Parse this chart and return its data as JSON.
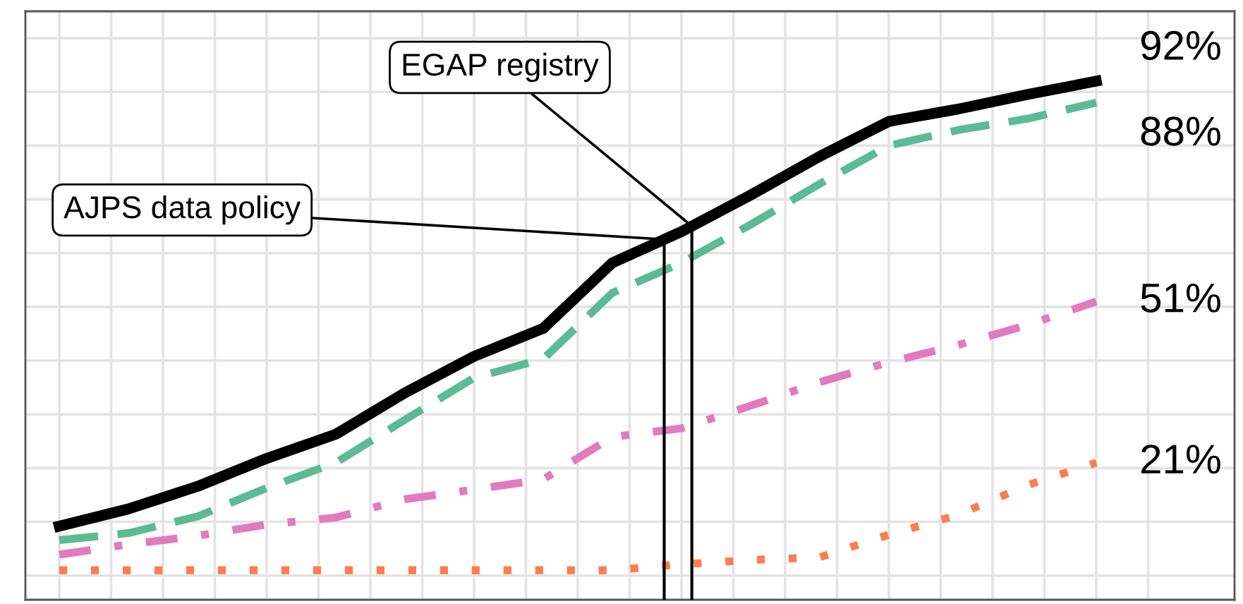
{
  "chart_data": {
    "type": "line",
    "categories": [
      null,
      null,
      null,
      null,
      null,
      null,
      null,
      null,
      null,
      null,
      null,
      null,
      null,
      null,
      null,
      null
    ],
    "series": [
      {
        "color": "#000000",
        "line_style": "solid",
        "values": [
          9.2,
          12.4,
          16.6,
          21.8,
          26.3,
          34,
          40.8,
          46,
          58.2,
          64,
          70.8,
          78,
          84.5,
          86.8,
          89.5,
          92
        ],
        "value_labels": [
          null,
          null,
          null,
          null,
          null,
          null,
          null,
          null,
          null,
          null,
          null,
          null,
          null,
          null,
          null,
          "92%"
        ]
      },
      {
        "color": "#5bbb95",
        "line_style": "dashed",
        "values": [
          6.6,
          7.9,
          11,
          16.3,
          21,
          29,
          36.8,
          40.3,
          52.6,
          58.2,
          65.3,
          72.9,
          80,
          82.9,
          85,
          88
        ],
        "value_labels": [
          null,
          null,
          null,
          null,
          null,
          null,
          null,
          null,
          null,
          null,
          null,
          null,
          null,
          null,
          null,
          "88%"
        ]
      },
      {
        "color": "#e07bbe",
        "line_style": "dashdot",
        "values": [
          3.9,
          5.8,
          7.4,
          9.5,
          10.8,
          14.2,
          16,
          17.9,
          25.8,
          27.4,
          31.6,
          36,
          39.7,
          42.9,
          46.6,
          51
        ],
        "value_labels": [
          null,
          null,
          null,
          null,
          null,
          null,
          null,
          null,
          null,
          null,
          null,
          null,
          null,
          null,
          null,
          "51%"
        ]
      },
      {
        "color": "#fc7d4f",
        "line_style": "dotted",
        "values": [
          1,
          1,
          1,
          1,
          1,
          1,
          1,
          1,
          1,
          2.1,
          2.9,
          3.4,
          7.6,
          11.3,
          16.8,
          21
        ],
        "value_labels": [
          null,
          null,
          null,
          null,
          null,
          null,
          null,
          null,
          null,
          null,
          null,
          null,
          null,
          null,
          null,
          "21%"
        ]
      }
    ],
    "annotations": [
      "AJPS data policy",
      "EGAP registry"
    ],
    "grid": true,
    "tick_labels": false,
    "marker": "none"
  }
}
